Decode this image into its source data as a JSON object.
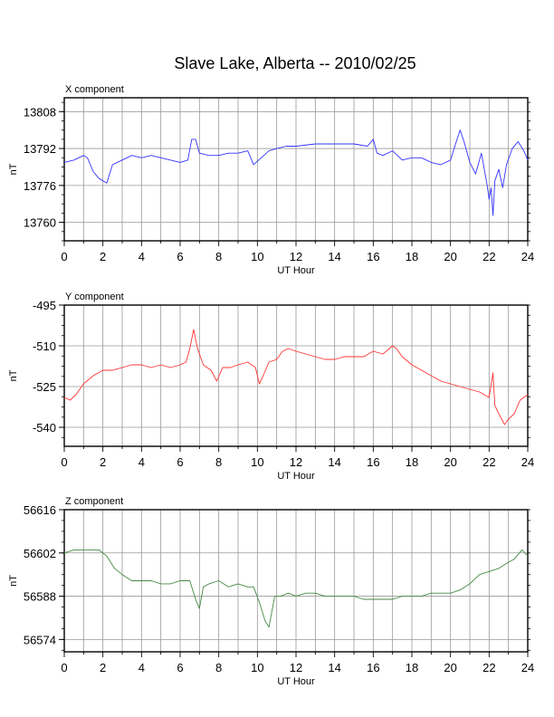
{
  "figure": {
    "title": "Slave Lake, Alberta -- 2010/02/25"
  },
  "chart_data": [
    {
      "type": "line",
      "title": "X component",
      "xlabel": "UT Hour",
      "ylabel": "nT",
      "xlim": [
        0,
        24
      ],
      "ylim": [
        13752,
        13814
      ],
      "xticks": [
        0,
        2,
        4,
        6,
        8,
        10,
        12,
        14,
        16,
        18,
        20,
        22,
        24
      ],
      "xtick_labels": [
        "0",
        "2",
        "4",
        "6",
        "8",
        "10",
        "12",
        "14",
        "16",
        "18",
        "20",
        "22",
        "24"
      ],
      "yticks": [
        13760,
        13776,
        13792,
        13808
      ],
      "ytick_labels": [
        "13760",
        "13776",
        "13792",
        "13808"
      ],
      "grid": true,
      "color": "#3333ff",
      "series": [
        {
          "x": [
            0,
            0.5,
            1,
            1.2,
            1.5,
            1.8,
            2.0,
            2.2,
            2.5,
            3,
            3.5,
            4,
            4.5,
            5,
            5.5,
            6,
            6.4,
            6.6,
            6.8,
            7,
            7.5,
            8,
            8.5,
            9,
            9.5,
            9.8,
            10.2,
            10.6,
            11,
            11.5,
            12,
            13,
            14,
            15,
            15.7,
            16,
            16.2,
            16.5,
            17,
            17.5,
            18,
            18.5,
            19,
            19.5,
            20,
            20.3,
            20.5,
            20.7,
            21,
            21.3,
            21.6,
            21.9,
            22.0,
            22.1,
            22.2,
            22.3,
            22.5,
            22.7,
            22.9,
            23.2,
            23.5,
            23.8,
            24
          ],
          "y": [
            13786,
            13787,
            13789,
            13788,
            13782,
            13779,
            13778,
            13777,
            13785,
            13787,
            13789,
            13788,
            13789,
            13788,
            13787,
            13786,
            13787,
            13796,
            13796,
            13790,
            13789,
            13789,
            13790,
            13790,
            13791,
            13785,
            13788,
            13791,
            13792,
            13793,
            13793,
            13794,
            13794,
            13794,
            13793,
            13796,
            13790,
            13789,
            13791,
            13787,
            13788,
            13788,
            13786,
            13785,
            13787,
            13795,
            13800,
            13795,
            13786,
            13781,
            13790,
            13776,
            13770,
            13775,
            13763,
            13778,
            13783,
            13775,
            13785,
            13792,
            13795,
            13791,
            13787
          ]
        }
      ]
    },
    {
      "type": "line",
      "title": "Y component",
      "xlabel": "UT Hour",
      "ylabel": "nT",
      "xlim": [
        0,
        24
      ],
      "ylim": [
        -547,
        -495
      ],
      "xticks": [
        0,
        2,
        4,
        6,
        8,
        10,
        12,
        14,
        16,
        18,
        20,
        22,
        24
      ],
      "xtick_labels": [
        "0",
        "2",
        "4",
        "6",
        "8",
        "10",
        "12",
        "14",
        "16",
        "18",
        "20",
        "22",
        "24"
      ],
      "yticks": [
        -495,
        -510,
        -525,
        -540
      ],
      "ytick_labels": [
        "-495",
        "-510",
        "-525",
        "-540"
      ],
      "grid": true,
      "color": "#ff3333",
      "series": [
        {
          "x": [
            0,
            0.3,
            0.6,
            1,
            1.5,
            2,
            2.5,
            3,
            3.5,
            4,
            4.5,
            5,
            5.5,
            6,
            6.3,
            6.5,
            6.7,
            6.9,
            7.2,
            7.6,
            7.9,
            8.2,
            8.6,
            9,
            9.5,
            9.9,
            10.1,
            10.3,
            10.6,
            11,
            11.3,
            11.6,
            12,
            12.5,
            13,
            13.5,
            14,
            14.5,
            15,
            15.5,
            16,
            16.5,
            17,
            17.2,
            17.5,
            18,
            18.5,
            19,
            19.5,
            20,
            20.5,
            21,
            21.5,
            22,
            22.2,
            22.3,
            22.5,
            22.8,
            23,
            23.3,
            23.6,
            24
          ],
          "y": [
            -529,
            -530,
            -528,
            -524,
            -521,
            -519,
            -519,
            -518,
            -517,
            -517,
            -518,
            -517,
            -518,
            -517,
            -516,
            -511,
            -504,
            -511,
            -517,
            -519,
            -523,
            -518,
            -518,
            -517,
            -516,
            -518,
            -524,
            -521,
            -516,
            -515,
            -512,
            -511,
            -512,
            -513,
            -514,
            -515,
            -515,
            -514,
            -514,
            -514,
            -512,
            -513,
            -510,
            -511,
            -514,
            -517,
            -519,
            -521,
            -523,
            -524,
            -525,
            -526,
            -527,
            -529,
            -520,
            -532,
            -535,
            -539,
            -537,
            -535,
            -530,
            -528
          ]
        }
      ]
    },
    {
      "type": "line",
      "title": "Z component",
      "xlabel": "UT Hour",
      "ylabel": "nT",
      "xlim": [
        0,
        24
      ],
      "ylim": [
        56570,
        56616
      ],
      "xticks": [
        0,
        2,
        4,
        6,
        8,
        10,
        12,
        14,
        16,
        18,
        20,
        22,
        24
      ],
      "xtick_labels": [
        "0",
        "2",
        "4",
        "6",
        "8",
        "10",
        "12",
        "14",
        "16",
        "18",
        "20",
        "22",
        "24"
      ],
      "yticks": [
        56574,
        56588,
        56602,
        56616
      ],
      "ytick_labels": [
        "56574",
        "56588",
        "56602",
        "56616"
      ],
      "grid": true,
      "color": "#448844",
      "series": [
        {
          "x": [
            0,
            0.5,
            1,
            1.5,
            1.8,
            2.2,
            2.6,
            3,
            3.5,
            4,
            4.5,
            5,
            5.5,
            6,
            6.5,
            6.8,
            7,
            7.2,
            7.5,
            8,
            8.5,
            9,
            9.5,
            9.8,
            10.1,
            10.4,
            10.6,
            10.9,
            11.2,
            11.6,
            12,
            12.5,
            13,
            13.5,
            14,
            14.5,
            15,
            15.5,
            16,
            16.5,
            17,
            17.5,
            18,
            18.5,
            19,
            19.5,
            20,
            20.5,
            21,
            21.5,
            22,
            22.5,
            23,
            23.3,
            23.7,
            24
          ],
          "y": [
            56602,
            56603,
            56603,
            56603,
            56603,
            56601,
            56597,
            56595,
            56593,
            56593,
            56593,
            56592,
            56592,
            56593,
            56593,
            56587,
            56584,
            56591,
            56592,
            56593,
            56591,
            56592,
            56591,
            56591,
            56586,
            56580,
            56578,
            56588,
            56588,
            56589,
            56588,
            56589,
            56589,
            56588,
            56588,
            56588,
            56588,
            56587,
            56587,
            56587,
            56587,
            56588,
            56588,
            56588,
            56589,
            56589,
            56589,
            56590,
            56592,
            56595,
            56596,
            56597,
            56599,
            56600,
            56603,
            56601
          ]
        }
      ]
    }
  ]
}
